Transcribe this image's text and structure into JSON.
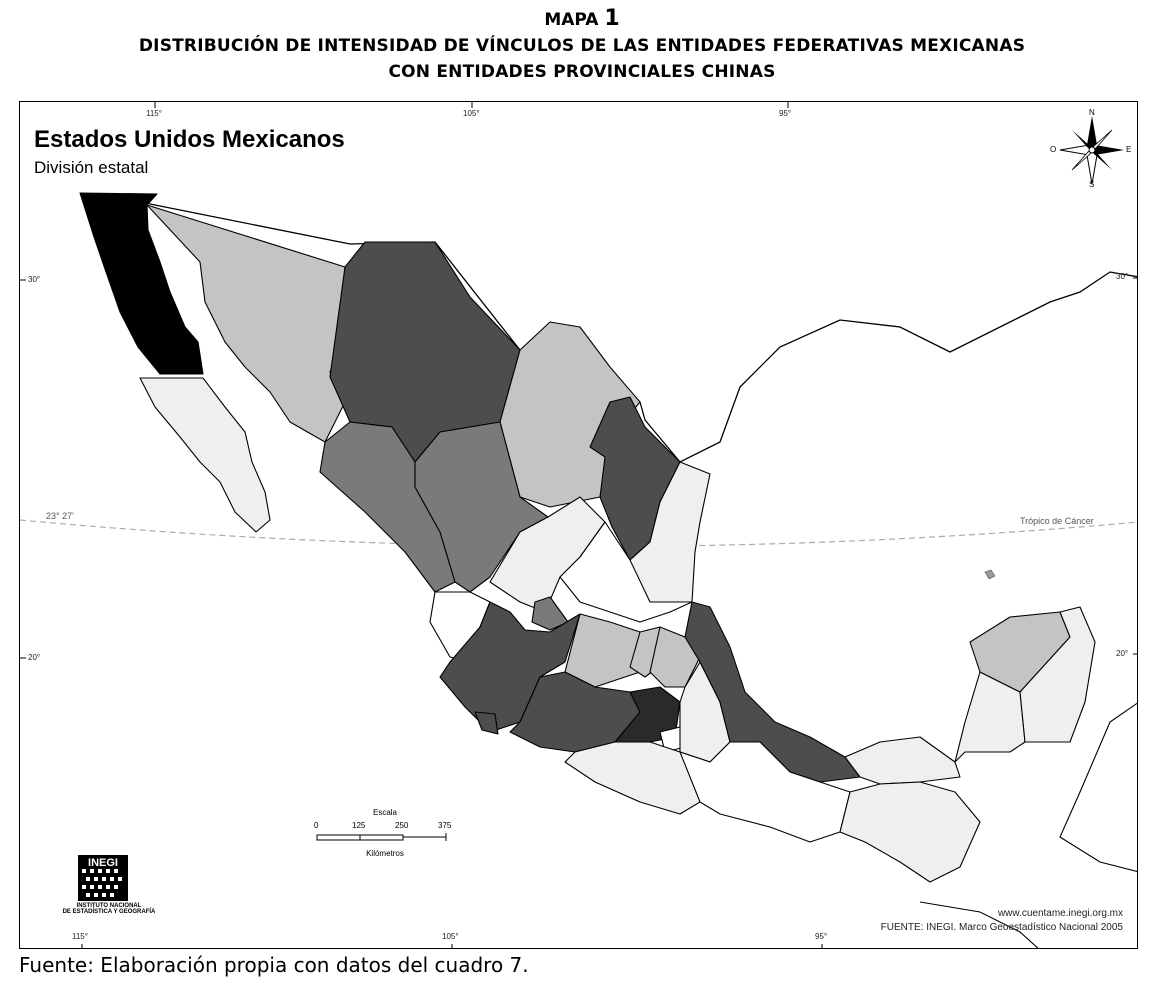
{
  "header": {
    "map_label": "MAPA",
    "map_number": "1",
    "title_line1": "DISTRIBUCIÓN DE INTENSIDAD DE VÍNCULOS DE LAS ENTIDADES FEDERATIVAS MEXICANAS",
    "title_line2": "CON ENTIDADES PROVINCIALES CHINAS"
  },
  "map": {
    "title": "Estados Unidos Mexicanos",
    "subtitle": "División estatal",
    "coords": {
      "top_115": "115°",
      "top_105": "105°",
      "top_95": "95°",
      "bottom_115": "115°",
      "bottom_105": "105°",
      "bottom_95": "95°",
      "left_30": "30°",
      "left_20": "20°",
      "right_30": "30°",
      "right_20": "20°"
    },
    "tropic": {
      "angle_label": "23° 27'",
      "name": "Trópico de Cáncer"
    },
    "compass": {
      "n": "N",
      "s": "S",
      "e": "E",
      "w": "O"
    },
    "scale": {
      "title": "Escala",
      "ticks": [
        "0",
        "125",
        "250",
        "375"
      ],
      "unit": "Kilómetros"
    },
    "logo": {
      "acronym": "INEGI",
      "line1": "INSTITUTO NACIONAL",
      "line2": "DE ESTADÍSTICA Y GEOGRAFÍA"
    },
    "credits": {
      "url": "www.cuentame.inegi.org.mx",
      "source": "FUENTE: INEGI. Marco Geoestadístico Nacional 2005"
    },
    "legend_colors": {
      "very_high": "#000000",
      "high": "#2a2a2a",
      "medium_high": "#4d4d4d",
      "medium": "#7a7a7a",
      "medium_low": "#c4c4c4",
      "low": "#efefef",
      "none": "#ffffff"
    }
  },
  "footer": {
    "source": "Fuente: Elaboración propia con datos del cuadro 7."
  }
}
